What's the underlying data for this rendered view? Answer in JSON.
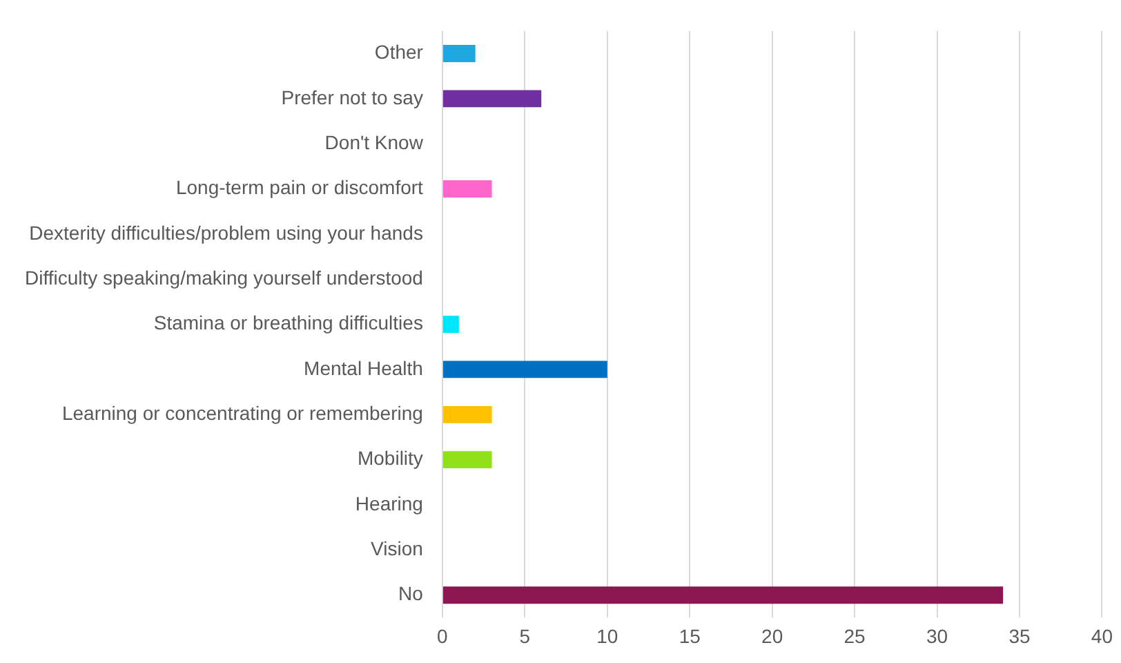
{
  "chart_data": {
    "type": "bar",
    "orientation": "horizontal",
    "categories": [
      "Other",
      "Prefer not to say",
      "Don't Know",
      "Long-term pain or discomfort",
      "Dexterity difficulties/problem using your hands",
      "Difficulty speaking/making yourself understood",
      "Stamina or breathing difficulties",
      "Mental Health",
      "Learning or concentrating or remembering",
      "Mobility",
      "Hearing",
      "Vision",
      "No"
    ],
    "values": [
      2,
      6,
      0,
      3,
      0,
      0,
      1,
      10,
      3,
      3,
      0,
      0,
      34
    ],
    "colors": [
      "#1ea8e0",
      "#7030a0",
      "#a0a0a0",
      "#ff66cc",
      "#a0a0a0",
      "#a0a0a0",
      "#00e5ff",
      "#0070c0",
      "#ffc000",
      "#92e01a",
      "#a0a0a0",
      "#a0a0a0",
      "#8b1650"
    ],
    "xlim": [
      0,
      40
    ],
    "xticks": [
      0,
      5,
      10,
      15,
      20,
      25,
      30,
      35,
      40
    ],
    "grid": "x",
    "legend": false
  }
}
